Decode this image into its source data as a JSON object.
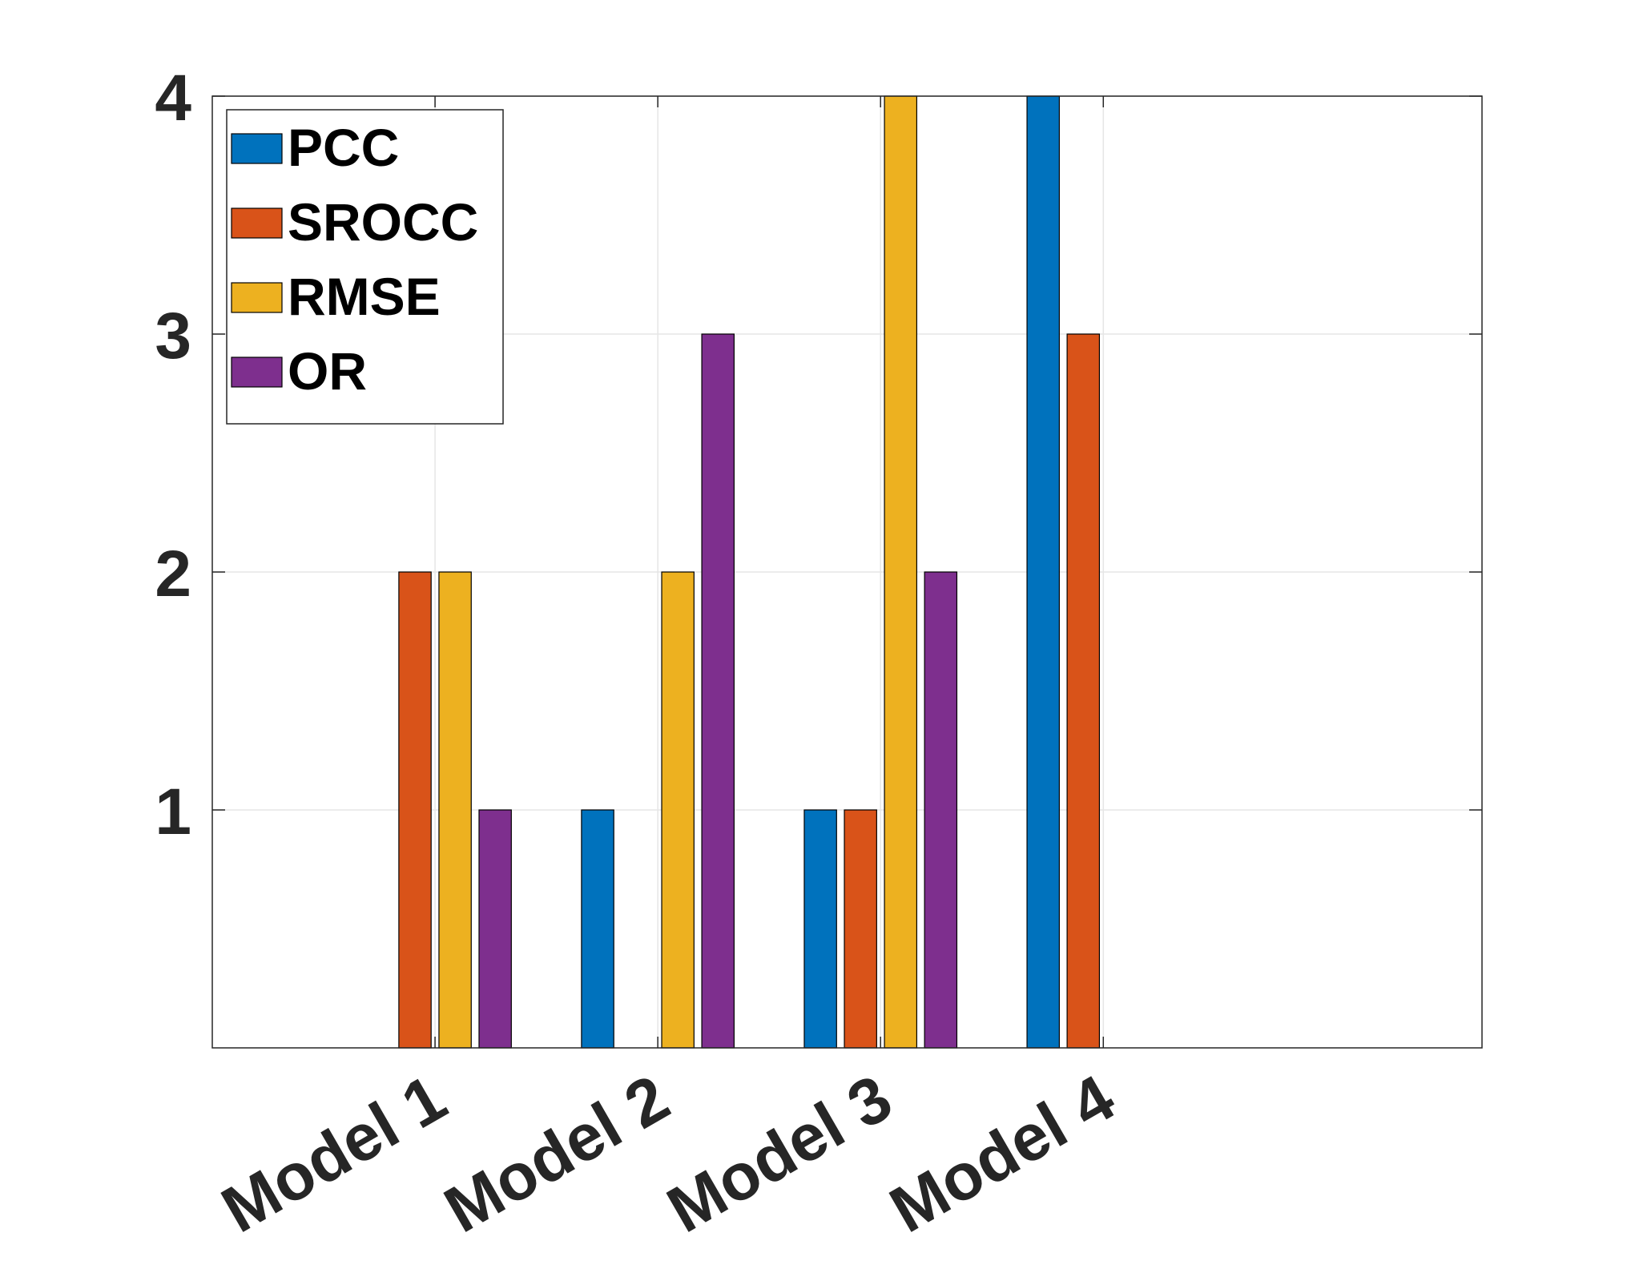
{
  "chart_data": {
    "type": "bar",
    "title": "",
    "xlabel": "",
    "ylabel": "",
    "categories": [
      "Model 1",
      "Model 2",
      "Model 3",
      "Model 4"
    ],
    "series": [
      {
        "name": "PCC",
        "color": "#0072BD",
        "values": [
          0,
          1,
          1,
          4
        ]
      },
      {
        "name": "SROCC",
        "color": "#D95319",
        "values": [
          2,
          0,
          1,
          3
        ]
      },
      {
        "name": "RMSE",
        "color": "#EDB120",
        "values": [
          2,
          2,
          4,
          0
        ]
      },
      {
        "name": "OR",
        "color": "#7E2F8E",
        "values": [
          1,
          3,
          2,
          0
        ]
      }
    ],
    "ylim": [
      0,
      4
    ],
    "yticks": [
      "1",
      "2",
      "3",
      "4"
    ],
    "grid": true,
    "legend_position": "top-left"
  }
}
